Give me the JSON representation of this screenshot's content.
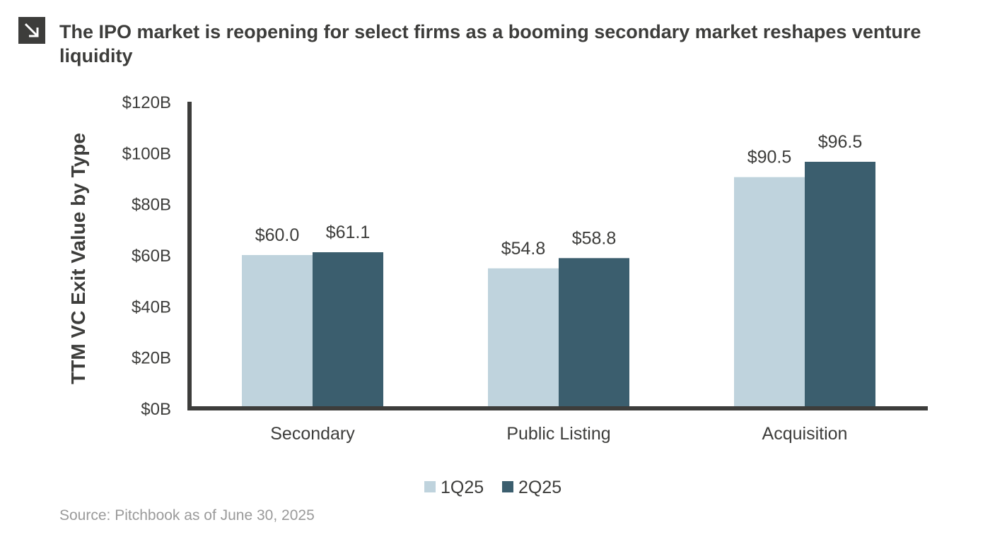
{
  "header": {
    "title": "The IPO market is reopening for select firms as a booming secondary market reshapes venture liquidity",
    "icon": "arrow-down-right-icon"
  },
  "source": "Source: Pitchbook as of June 30, 2025",
  "colors": {
    "series_1q25": "#bfd3dd",
    "series_2q25": "#3b5e6e",
    "axis": "#3d3d3b",
    "text": "#3d3d3b"
  },
  "chart_data": {
    "type": "bar",
    "title": "The IPO market is reopening for select firms as a booming secondary market reshapes venture liquidity",
    "ylabel": "TTM VC Exit Value by Type",
    "xlabel": "",
    "ylim": [
      0,
      120
    ],
    "y_ticks": [
      0,
      20,
      40,
      60,
      80,
      100,
      120
    ],
    "y_tick_labels": [
      "$0B",
      "$20B",
      "$40B",
      "$60B",
      "$80B",
      "$100B",
      "$120B"
    ],
    "categories": [
      "Secondary",
      "Public Listing",
      "Acquisition"
    ],
    "series": [
      {
        "name": "1Q25",
        "values": [
          60.0,
          54.8,
          90.5
        ],
        "labels": [
          "$60.0",
          "$54.8",
          "$90.5"
        ]
      },
      {
        "name": "2Q25",
        "values": [
          61.1,
          58.8,
          96.5
        ],
        "labels": [
          "$61.1",
          "$58.8",
          "$96.5"
        ]
      }
    ],
    "grid": false,
    "legend_position": "bottom-center"
  }
}
